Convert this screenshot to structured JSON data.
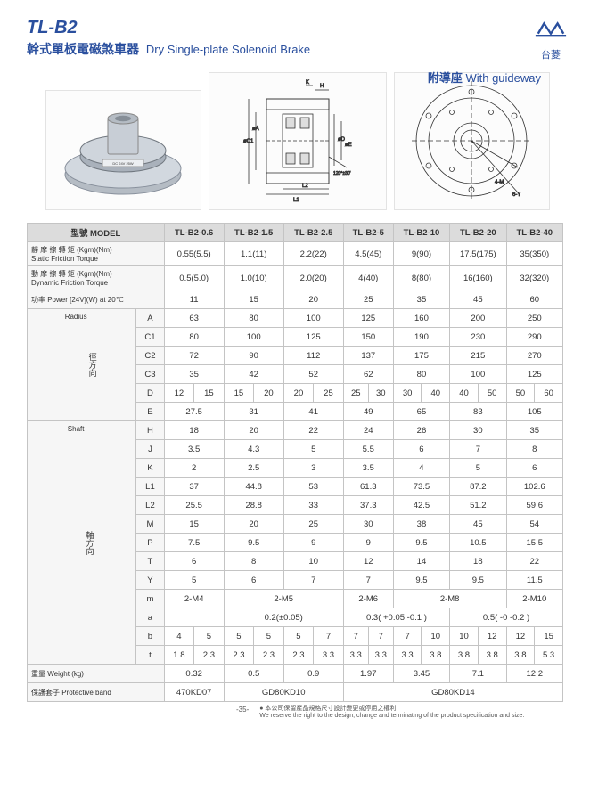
{
  "header": {
    "code": "TL-B2",
    "title_cn": "幹式單板電磁煞車器",
    "title_en": "Dry Single-plate Solenoid Brake",
    "logo_text": "台菱",
    "guideway_cn": "附導座",
    "guideway_en": "With guideway"
  },
  "colors": {
    "brand": "#2a4f9e",
    "border": "#c4c4c4",
    "th_bg": "#dcdcdc",
    "rhead_bg": "#f6f6f6"
  },
  "table": {
    "model_label": "型號 MODEL",
    "models": [
      "TL-B2-0.6",
      "TL-B2-1.5",
      "TL-B2-2.5",
      "TL-B2-5",
      "TL-B2-10",
      "TL-B2-20",
      "TL-B2-40"
    ],
    "static_label": "靜 摩 擦 轉 矩  (Kgm)(Nm)\nStatic Friction Torque",
    "static": [
      "0.55(5.5)",
      "1.1(11)",
      "2.2(22)",
      "4.5(45)",
      "9(90)",
      "17.5(175)",
      "35(350)"
    ],
    "dynamic_label": "動 摩 擦 轉 矩  (Kgm)(Nm)\nDynamic Friction Torque",
    "dynamic": [
      "0.5(5.0)",
      "1.0(10)",
      "2.0(20)",
      "4(40)",
      "8(80)",
      "16(160)",
      "32(320)"
    ],
    "power_label": "功率  Power  [24V](W) at 20℃",
    "power": [
      "11",
      "15",
      "20",
      "25",
      "35",
      "45",
      "60"
    ],
    "radius_group_cn": "徑方向",
    "radius_group_en": "Radius",
    "A": [
      "63",
      "80",
      "100",
      "125",
      "160",
      "200",
      "250"
    ],
    "C1": [
      "80",
      "100",
      "125",
      "150",
      "190",
      "230",
      "290"
    ],
    "C2": [
      "72",
      "90",
      "112",
      "137",
      "175",
      "215",
      "270"
    ],
    "C3": [
      "35",
      "42",
      "52",
      "62",
      "80",
      "100",
      "125"
    ],
    "D": [
      [
        "12",
        "15"
      ],
      [
        "15",
        "20"
      ],
      [
        "20",
        "25"
      ],
      [
        "25",
        "30"
      ],
      [
        "30",
        "40"
      ],
      [
        "40",
        "50"
      ],
      [
        "50",
        "60"
      ]
    ],
    "E": [
      "27.5",
      "31",
      "41",
      "49",
      "65",
      "83",
      "105"
    ],
    "shaft_group_cn": "軸方向",
    "shaft_group_en": "Shaft",
    "H": [
      "18",
      "20",
      "22",
      "24",
      "26",
      "30",
      "35"
    ],
    "J": [
      "3.5",
      "4.3",
      "5",
      "5.5",
      "6",
      "7",
      "8"
    ],
    "K": [
      "2",
      "2.5",
      "3",
      "3.5",
      "4",
      "5",
      "6"
    ],
    "L1": [
      "37",
      "44.8",
      "53",
      "61.3",
      "73.5",
      "87.2",
      "102.6"
    ],
    "L2": [
      "25.5",
      "28.8",
      "33",
      "37.3",
      "42.5",
      "51.2",
      "59.6"
    ],
    "M": [
      "15",
      "20",
      "25",
      "30",
      "38",
      "45",
      "54"
    ],
    "P": [
      "7.5",
      "9.5",
      "9",
      "9",
      "9.5",
      "10.5",
      "15.5"
    ],
    "T": [
      "6",
      "8",
      "10",
      "12",
      "14",
      "18",
      "22"
    ],
    "Y": [
      "5",
      "6",
      "7",
      "7",
      "9.5",
      "9.5",
      "11.5"
    ],
    "m": [
      "2-M4",
      "2-M5",
      "2-M6",
      "2-M8",
      "2-M10"
    ],
    "m_spans": [
      1,
      2,
      1,
      2,
      1
    ],
    "a": [
      "",
      "0.2(±0.05)",
      "0.3( +0.05 -0.1 )",
      "0.5( -0  -0.2 )"
    ],
    "a_spans": [
      1,
      2,
      2,
      2
    ],
    "b": [
      [
        "4",
        "5"
      ],
      [
        "5",
        "5"
      ],
      [
        "5",
        "7"
      ],
      [
        "7",
        "7"
      ],
      [
        "7",
        "10"
      ],
      [
        "10",
        "12"
      ],
      [
        "12",
        "15"
      ]
    ],
    "t": [
      [
        "1.8",
        "2.3"
      ],
      [
        "2.3",
        "2.3"
      ],
      [
        "2.3",
        "3.3"
      ],
      [
        "3.3",
        "3.3"
      ],
      [
        "3.3",
        "3.8"
      ],
      [
        "3.8",
        "3.8"
      ],
      [
        "3.8",
        "5.3"
      ]
    ],
    "weight_label": "重量 Weight     (kg)",
    "weight": [
      "0.32",
      "0.5",
      "0.9",
      "1.97",
      "3.45",
      "7.1",
      "12.2"
    ],
    "band_label": "保護套子 Protective band",
    "band": [
      "470KD07",
      "GD80KD10",
      "GD80KD14"
    ],
    "band_spans": [
      1,
      2,
      4
    ]
  },
  "footer": {
    "page": "-35-",
    "disclaimer_cn": "● 本公司保留產品規格尺寸設計變更或停用之權利.",
    "disclaimer_en": "We reserve the right to the design, change and terminating of the product specification and size."
  }
}
